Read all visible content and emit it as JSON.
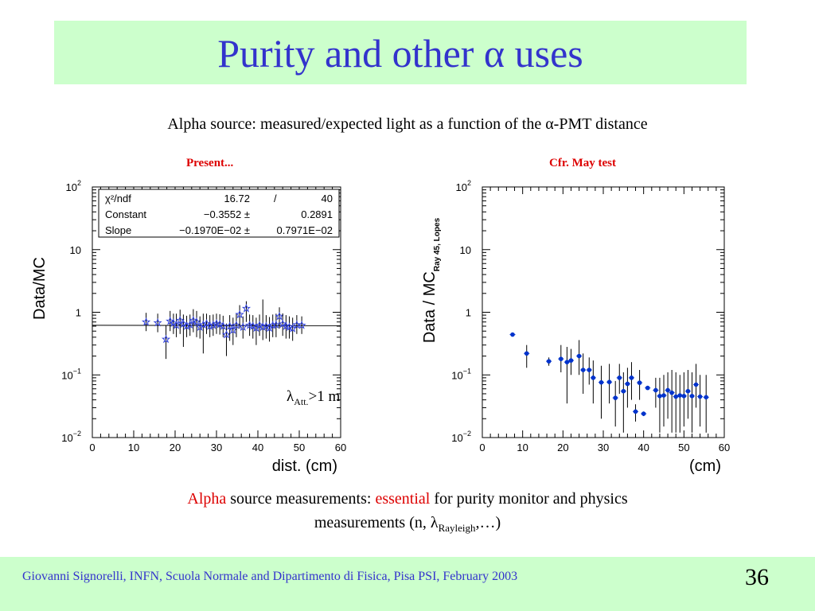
{
  "slide": {
    "title": "Purity and other α uses",
    "subtitle": "Alpha source: measured/expected light as a function of the α-PMT distance",
    "left_label": "Present...",
    "right_label": "Cfr. May test",
    "annotation": {
      "lambda": "λ",
      "sub": "Att.",
      "rest": ">1 m"
    },
    "summary": {
      "part1": "Alpha",
      "part2": " source measurements: ",
      "part3": "essential",
      "part4": " for purity monitor and physics",
      "line2a": "measurements (n, λ",
      "line2sub": "Rayleigh",
      "line2b": ",…)"
    },
    "footer": "Giovanni Signorelli, INFN, Scuola Normale and  Dipartimento di Fisica, Pisa    PSI, February 2003",
    "page_number": "36"
  },
  "colors": {
    "title": "#3333cc",
    "band": "#ccffcc",
    "red_label": "#dd0000",
    "left_markers": "#3344dd",
    "right_markers": "#0033cc"
  },
  "chart_data": [
    {
      "type": "scatter",
      "name": "left-plot",
      "xlabel": "dist. (cm)",
      "ylabel": "Data/MC",
      "xlim": [
        0,
        60
      ],
      "ylim": [
        0.01,
        100
      ],
      "log_y": true,
      "xticks": [
        "0",
        "10",
        "20",
        "30",
        "40",
        "50",
        "60"
      ],
      "yticks": [
        {
          "base": "10",
          "exp": "−2",
          "value": 0.01
        },
        {
          "base": "10",
          "exp": "−1",
          "value": 0.1
        },
        {
          "base": "1",
          "exp": "",
          "value": 1
        },
        {
          "base": "10",
          "exp": "",
          "value": 10
        },
        {
          "base": "10",
          "exp": "2",
          "value": 100
        }
      ],
      "marker": "star",
      "fit_line": {
        "x": [
          0,
          60
        ],
        "y": [
          0.62,
          0.61
        ]
      },
      "stats": [
        {
          "label": "χ²/ndf",
          "value1": "16.72",
          "sep": "/",
          "value2": "40"
        },
        {
          "label": "Constant",
          "value1": "−0.3552 ±",
          "sep": "",
          "value2": "0.2891"
        },
        {
          "label": "Slope",
          "value1": "−0.1970E−02 ±",
          "sep": "",
          "value2": "0.7971E−02"
        }
      ],
      "points": [
        {
          "x": 13,
          "y": 0.7,
          "lo": 0.5,
          "hi": 0.98
        },
        {
          "x": 15.8,
          "y": 0.68,
          "lo": 0.48,
          "hi": 0.95
        },
        {
          "x": 17.8,
          "y": 0.37,
          "lo": 0.18,
          "hi": 0.62
        },
        {
          "x": 18.8,
          "y": 0.72,
          "lo": 0.5,
          "hi": 1.05
        },
        {
          "x": 19.6,
          "y": 0.67,
          "lo": 0.45,
          "hi": 0.95
        },
        {
          "x": 20.3,
          "y": 0.62,
          "lo": 0.4,
          "hi": 0.95
        },
        {
          "x": 21.2,
          "y": 0.74,
          "lo": 0.45,
          "hi": 1.1
        },
        {
          "x": 22.0,
          "y": 0.65,
          "lo": 0.28,
          "hi": 0.92
        },
        {
          "x": 22.8,
          "y": 0.6,
          "lo": 0.4,
          "hi": 0.88
        },
        {
          "x": 23.6,
          "y": 0.63,
          "lo": 0.42,
          "hi": 0.92
        },
        {
          "x": 24.4,
          "y": 0.74,
          "lo": 0.48,
          "hi": 1.12
        },
        {
          "x": 25.2,
          "y": 0.7,
          "lo": 0.4,
          "hi": 1.05
        },
        {
          "x": 26.0,
          "y": 0.58,
          "lo": 0.38,
          "hi": 0.86
        },
        {
          "x": 26.8,
          "y": 0.63,
          "lo": 0.22,
          "hi": 0.95
        },
        {
          "x": 27.6,
          "y": 0.66,
          "lo": 0.45,
          "hi": 0.95
        },
        {
          "x": 28.4,
          "y": 0.6,
          "lo": 0.4,
          "hi": 0.9
        },
        {
          "x": 29.2,
          "y": 0.62,
          "lo": 0.42,
          "hi": 0.92
        },
        {
          "x": 30.0,
          "y": 0.66,
          "lo": 0.45,
          "hi": 0.95
        },
        {
          "x": 30.8,
          "y": 0.64,
          "lo": 0.44,
          "hi": 0.93
        },
        {
          "x": 31.6,
          "y": 0.6,
          "lo": 0.4,
          "hi": 0.88
        },
        {
          "x": 32.4,
          "y": 0.44,
          "lo": 0.2,
          "hi": 0.66
        },
        {
          "x": 33.2,
          "y": 0.6,
          "lo": 0.35,
          "hi": 0.9
        },
        {
          "x": 34.0,
          "y": 0.52,
          "lo": 0.3,
          "hi": 0.82
        },
        {
          "x": 34.8,
          "y": 0.62,
          "lo": 0.4,
          "hi": 0.95
        },
        {
          "x": 35.6,
          "y": 0.92,
          "lo": 0.55,
          "hi": 1.3
        },
        {
          "x": 36.4,
          "y": 0.58,
          "lo": 0.38,
          "hi": 0.86
        },
        {
          "x": 37.2,
          "y": 1.15,
          "lo": 0.7,
          "hi": 1.5
        },
        {
          "x": 38.0,
          "y": 0.62,
          "lo": 0.42,
          "hi": 0.92
        },
        {
          "x": 38.8,
          "y": 0.6,
          "lo": 0.38,
          "hi": 0.9
        },
        {
          "x": 39.6,
          "y": 0.56,
          "lo": 0.3,
          "hi": 0.82
        },
        {
          "x": 40.4,
          "y": 0.62,
          "lo": 0.42,
          "hi": 0.92
        },
        {
          "x": 41.2,
          "y": 0.58,
          "lo": 0.36,
          "hi": 1.6
        },
        {
          "x": 42.0,
          "y": 0.6,
          "lo": 0.38,
          "hi": 0.9
        },
        {
          "x": 42.8,
          "y": 0.56,
          "lo": 0.34,
          "hi": 0.84
        },
        {
          "x": 43.6,
          "y": 0.62,
          "lo": 0.4,
          "hi": 0.92
        },
        {
          "x": 44.4,
          "y": 0.63,
          "lo": 0.4,
          "hi": 0.95
        },
        {
          "x": 45.2,
          "y": 0.86,
          "lo": 0.55,
          "hi": 1.2
        },
        {
          "x": 46.0,
          "y": 0.65,
          "lo": 0.42,
          "hi": 0.96
        },
        {
          "x": 46.8,
          "y": 0.6,
          "lo": 0.38,
          "hi": 0.9
        },
        {
          "x": 47.6,
          "y": 0.58,
          "lo": 0.38,
          "hi": 0.86
        },
        {
          "x": 48.4,
          "y": 0.55,
          "lo": 0.35,
          "hi": 0.82
        },
        {
          "x": 49.4,
          "y": 0.63,
          "lo": 0.45,
          "hi": 0.9
        },
        {
          "x": 50.6,
          "y": 0.62,
          "lo": 0.45,
          "hi": 0.86
        }
      ]
    },
    {
      "type": "scatter",
      "name": "right-plot",
      "xlabel": "(cm)",
      "ylabel_main": "Data / MC",
      "ylabel_sub": "Ray 45, Lopes",
      "xlim": [
        0,
        60
      ],
      "ylim": [
        0.01,
        100
      ],
      "log_y": true,
      "xticks": [
        "0",
        "10",
        "20",
        "30",
        "40",
        "50",
        "60"
      ],
      "yticks": [
        {
          "base": "10",
          "exp": "−2",
          "value": 0.01
        },
        {
          "base": "10",
          "exp": "−1",
          "value": 0.1
        },
        {
          "base": "1",
          "exp": "",
          "value": 1
        },
        {
          "base": "10",
          "exp": "",
          "value": 10
        },
        {
          "base": "10",
          "exp": "2",
          "value": 100
        }
      ],
      "marker": "dot",
      "points": [
        {
          "x": 7.5,
          "y": 0.44,
          "lo": 0.42,
          "hi": 0.47
        },
        {
          "x": 11.0,
          "y": 0.22,
          "lo": 0.13,
          "hi": 0.3
        },
        {
          "x": 16.5,
          "y": 0.165,
          "lo": 0.14,
          "hi": 0.19
        },
        {
          "x": 19.5,
          "y": 0.18,
          "lo": 0.11,
          "hi": 0.3
        },
        {
          "x": 21.0,
          "y": 0.16,
          "lo": 0.035,
          "hi": 0.28
        },
        {
          "x": 22.0,
          "y": 0.17,
          "lo": 0.1,
          "hi": 0.26
        },
        {
          "x": 24.0,
          "y": 0.2,
          "lo": 0.1,
          "hi": 0.36
        },
        {
          "x": 25.0,
          "y": 0.12,
          "lo": 0.05,
          "hi": 0.22
        },
        {
          "x": 26.5,
          "y": 0.12,
          "lo": 0.07,
          "hi": 0.19
        },
        {
          "x": 27.5,
          "y": 0.09,
          "lo": 0.035,
          "hi": 0.17
        },
        {
          "x": 29.5,
          "y": 0.076,
          "lo": 0.02,
          "hi": 0.14
        },
        {
          "x": 31.5,
          "y": 0.077,
          "lo": 0.035,
          "hi": 0.15
        },
        {
          "x": 33.0,
          "y": 0.043,
          "lo": 0.015,
          "hi": 0.08
        },
        {
          "x": 34.0,
          "y": 0.09,
          "lo": 0.05,
          "hi": 0.15
        },
        {
          "x": 35.0,
          "y": 0.055,
          "lo": 0.012,
          "hi": 0.11
        },
        {
          "x": 36.0,
          "y": 0.072,
          "lo": 0.03,
          "hi": 0.13
        },
        {
          "x": 37.0,
          "y": 0.09,
          "lo": 0.04,
          "hi": 0.16
        },
        {
          "x": 38.0,
          "y": 0.026,
          "lo": 0.018,
          "hi": 0.034
        },
        {
          "x": 39.0,
          "y": 0.075,
          "lo": 0.04,
          "hi": 0.12
        },
        {
          "x": 40.0,
          "y": 0.024,
          "lo": 0.022,
          "hi": 0.026
        },
        {
          "x": 41.0,
          "y": 0.062,
          "lo": 0.058,
          "hi": 0.066
        },
        {
          "x": 43.0,
          "y": 0.057,
          "lo": 0.03,
          "hi": 0.09
        },
        {
          "x": 44.0,
          "y": 0.046,
          "lo": 0.012,
          "hi": 0.09
        },
        {
          "x": 45.0,
          "y": 0.047,
          "lo": 0.015,
          "hi": 0.1
        },
        {
          "x": 46.0,
          "y": 0.057,
          "lo": 0.02,
          "hi": 0.11
        },
        {
          "x": 47.0,
          "y": 0.052,
          "lo": 0.012,
          "hi": 0.12
        },
        {
          "x": 48.0,
          "y": 0.045,
          "lo": 0.012,
          "hi": 0.11
        },
        {
          "x": 49.0,
          "y": 0.047,
          "lo": 0.012,
          "hi": 0.1
        },
        {
          "x": 50.0,
          "y": 0.046,
          "lo": 0.015,
          "hi": 0.11
        },
        {
          "x": 51.0,
          "y": 0.055,
          "lo": 0.02,
          "hi": 0.12
        },
        {
          "x": 52.0,
          "y": 0.046,
          "lo": 0.012,
          "hi": 0.11
        },
        {
          "x": 53.0,
          "y": 0.07,
          "lo": 0.03,
          "hi": 0.15
        },
        {
          "x": 54.0,
          "y": 0.045,
          "lo": 0.015,
          "hi": 0.1
        },
        {
          "x": 55.5,
          "y": 0.044,
          "lo": 0.012,
          "hi": 0.1
        }
      ]
    }
  ]
}
